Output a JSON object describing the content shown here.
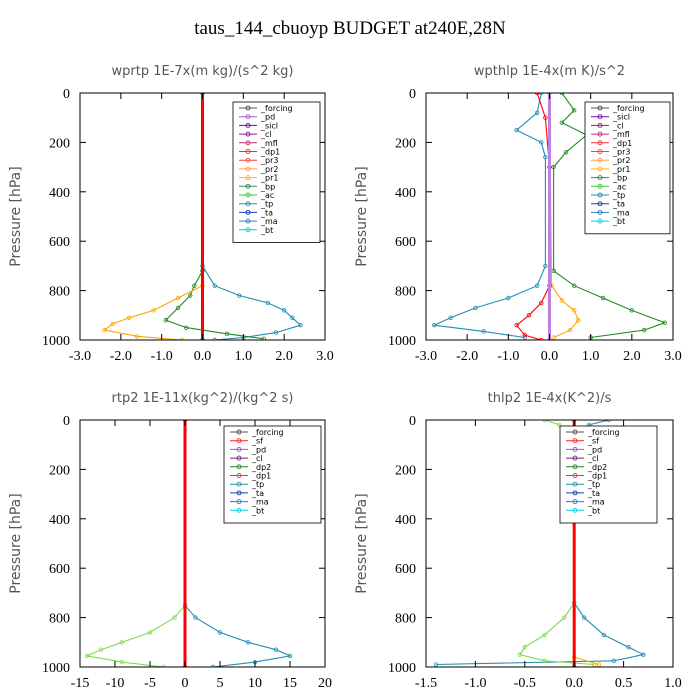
{
  "title": "taus_144_cbuoyp  BUDGET at240E,28N",
  "chart_data": [
    {
      "type": "line",
      "title": "wprtp   1E-7x(m kg)/(s^2 kg)",
      "ylabel": "Pressure [hPa]",
      "xlim": [
        -3.0,
        3.0
      ],
      "ylim": [
        1000,
        0
      ],
      "xticks": [
        "-3.0",
        "-2.0",
        "-1.0",
        "0.0",
        "1.0",
        "2.0",
        "3.0"
      ],
      "yticks": [
        "0",
        "200",
        "400",
        "600",
        "800",
        "1000"
      ],
      "legend": [
        "_forcing",
        "_pd",
        "_sicl",
        "_cl",
        "_mfl",
        "_dp1",
        "_pr3",
        "_pr2",
        "_pr1",
        "_bp",
        "_ac",
        "_tp",
        "_ta",
        "_ma",
        "_bt"
      ],
      "series": [
        {
          "name": "_ma",
          "color": "#1f8fb4",
          "points": [
            [
              0,
              0
            ],
            [
              0,
              700
            ],
            [
              0.3,
              780
            ],
            [
              0.9,
              820
            ],
            [
              1.6,
              850
            ],
            [
              2.0,
              880
            ],
            [
              2.2,
              910
            ],
            [
              2.4,
              940
            ],
            [
              1.8,
              970
            ],
            [
              1.0,
              990
            ],
            [
              0.3,
              1000
            ]
          ]
        },
        {
          "name": "_bp",
          "color": "#228b22",
          "points": [
            [
              0,
              0
            ],
            [
              0,
              720
            ],
            [
              -0.2,
              780
            ],
            [
              -0.3,
              820
            ],
            [
              -0.6,
              870
            ],
            [
              -0.9,
              920
            ],
            [
              -0.4,
              950
            ],
            [
              0.6,
              975
            ],
            [
              1.5,
              995
            ]
          ]
        },
        {
          "name": "_pr1",
          "color": "#ffa500",
          "points": [
            [
              0,
              0
            ],
            [
              0,
              780
            ],
            [
              -0.6,
              830
            ],
            [
              -1.2,
              880
            ],
            [
              -1.8,
              910
            ],
            [
              -2.2,
              935
            ],
            [
              -2.4,
              960
            ],
            [
              -1.6,
              985
            ],
            [
              -0.5,
              1000
            ]
          ]
        },
        {
          "name": "_forcing",
          "color": "#000000",
          "points": [
            [
              0,
              0
            ],
            [
              0,
              1000
            ]
          ]
        },
        {
          "name": "_dp1",
          "color": "#ff0000",
          "points": [
            [
              0,
              0
            ],
            [
              0,
              1000
            ]
          ]
        }
      ]
    },
    {
      "type": "line",
      "title": "wpthlp   1E-4x(m K)/s^2",
      "ylabel": "Pressure [hPa]",
      "xlim": [
        -3.0,
        3.0
      ],
      "ylim": [
        1000,
        0
      ],
      "xticks": [
        "-3.0",
        "-2.0",
        "-1.0",
        "0.0",
        "1.0",
        "2.0",
        "3.0"
      ],
      "yticks": [
        "0",
        "200",
        "400",
        "600",
        "800",
        "1000"
      ],
      "legend": [
        "_forcing",
        "_sicl",
        "_cl",
        "_mfl",
        "_dp1",
        "_pr3",
        "_pr2",
        "_pr1",
        "_bp",
        "_ac",
        "_tp",
        "_ta",
        "_ma",
        "_bt"
      ],
      "series": [
        {
          "name": "_ma",
          "color": "#1f8fb4",
          "points": [
            [
              -0.2,
              0
            ],
            [
              -0.3,
              80
            ],
            [
              -0.8,
              150
            ],
            [
              -0.2,
              200
            ],
            [
              -0.1,
              260
            ],
            [
              -0.1,
              700
            ],
            [
              -0.3,
              780
            ],
            [
              -1.0,
              830
            ],
            [
              -1.8,
              870
            ],
            [
              -2.4,
              910
            ],
            [
              -2.8,
              940
            ],
            [
              -1.6,
              965
            ],
            [
              -0.6,
              990
            ]
          ]
        },
        {
          "name": "_bp",
          "color": "#228b22",
          "points": [
            [
              0.3,
              0
            ],
            [
              0.6,
              70
            ],
            [
              0.3,
              120
            ],
            [
              0.9,
              170
            ],
            [
              0.4,
              240
            ],
            [
              0.1,
              300
            ],
            [
              0.1,
              720
            ],
            [
              0.6,
              780
            ],
            [
              1.3,
              830
            ],
            [
              2.0,
              880
            ],
            [
              2.8,
              930
            ],
            [
              2.3,
              960
            ],
            [
              1.0,
              990
            ]
          ]
        },
        {
          "name": "_pr1",
          "color": "#ffa500",
          "points": [
            [
              0,
              0
            ],
            [
              0.05,
              780
            ],
            [
              0.3,
              840
            ],
            [
              0.6,
              880
            ],
            [
              0.7,
              920
            ],
            [
              0.5,
              960
            ],
            [
              0.1,
              990
            ]
          ]
        },
        {
          "name": "_dp1",
          "color": "#ff0000",
          "points": [
            [
              -0.3,
              0
            ],
            [
              -0.1,
              100
            ],
            [
              0,
              300
            ],
            [
              0,
              780
            ],
            [
              -0.2,
              850
            ],
            [
              -0.5,
              900
            ],
            [
              -0.8,
              940
            ],
            [
              -0.6,
              980
            ],
            [
              -0.2,
              1000
            ]
          ]
        },
        {
          "name": "_forcing",
          "color": "#c080e0",
          "points": [
            [
              0,
              0
            ],
            [
              0,
              1000
            ]
          ]
        }
      ]
    },
    {
      "type": "line",
      "title": "rtp2   1E-11x(kg^2)/(kg^2 s)",
      "ylabel": "Pressure [hPa]",
      "xlim": [
        -15,
        20
      ],
      "ylim": [
        1000,
        0
      ],
      "xticks": [
        "-15",
        "-10",
        "-5",
        "0",
        "5",
        "10",
        "15",
        "20"
      ],
      "yticks": [
        "0",
        "200",
        "400",
        "600",
        "800",
        "1000"
      ],
      "legend": [
        "_forcing",
        "_sf",
        "_pd",
        "_cl",
        "_dp2",
        "_dp1",
        "_tp",
        "_ta",
        "_ma",
        "_bt"
      ],
      "series": [
        {
          "name": "_tp",
          "color": "#1f8fb4",
          "points": [
            [
              0,
              0
            ],
            [
              0,
              750
            ],
            [
              1.5,
              800
            ],
            [
              5,
              860
            ],
            [
              9,
              900
            ],
            [
              13,
              930
            ],
            [
              15,
              955
            ],
            [
              10,
              980
            ],
            [
              4,
              1000
            ]
          ]
        },
        {
          "name": "_dp1",
          "color": "#7fdd4c",
          "points": [
            [
              0,
              0
            ],
            [
              0,
              750
            ],
            [
              -1.5,
              800
            ],
            [
              -5,
              860
            ],
            [
              -9,
              900
            ],
            [
              -12,
              930
            ],
            [
              -14,
              955
            ],
            [
              -9,
              980
            ],
            [
              -3,
              1000
            ]
          ]
        },
        {
          "name": "_forcing",
          "color": "#ff0000",
          "points": [
            [
              0,
              0
            ],
            [
              0,
              1000
            ]
          ]
        }
      ]
    },
    {
      "type": "line",
      "title": "thlp2   1E-4x(K^2)/s",
      "ylabel": "Pressure [hPa]",
      "xlim": [
        -1.5,
        1.0
      ],
      "ylim": [
        1000,
        0
      ],
      "xticks": [
        "-1.5",
        "-1.0",
        "-0.5",
        "0.0",
        "0.5",
        "1.0"
      ],
      "yticks": [
        "0",
        "200",
        "400",
        "600",
        "800",
        "1000"
      ],
      "legend": [
        "_forcing",
        "_sf",
        "_pd",
        "_cl",
        "_dp2",
        "_dp1",
        "_tp",
        "_ta",
        "_ma",
        "_bt"
      ],
      "series": [
        {
          "name": "_tp",
          "color": "#1f8fb4",
          "points": [
            [
              0.35,
              0
            ],
            [
              0.15,
              20
            ],
            [
              0.05,
              60
            ],
            [
              0.02,
              150
            ],
            [
              0,
              300
            ],
            [
              0,
              740
            ],
            [
              0.1,
              800
            ],
            [
              0.3,
              870
            ],
            [
              0.55,
              920
            ],
            [
              0.7,
              950
            ],
            [
              0.4,
              975
            ],
            [
              -1.4,
              990
            ]
          ]
        },
        {
          "name": "_dp1",
          "color": "#7fdd4c",
          "points": [
            [
              -0.3,
              0
            ],
            [
              -0.15,
              20
            ],
            [
              -0.05,
              60
            ],
            [
              -0.02,
              150
            ],
            [
              0,
              300
            ],
            [
              0,
              740
            ],
            [
              -0.1,
              800
            ],
            [
              -0.3,
              870
            ],
            [
              -0.5,
              920
            ],
            [
              -0.55,
              950
            ],
            [
              -0.3,
              975
            ],
            [
              0.2,
              990
            ]
          ]
        },
        {
          "name": "_pd",
          "color": "#ffa500",
          "points": [
            [
              0,
              0
            ],
            [
              0,
              960
            ],
            [
              0.25,
              990
            ]
          ]
        },
        {
          "name": "_forcing",
          "color": "#ff0000",
          "points": [
            [
              0,
              0
            ],
            [
              0,
              1000
            ]
          ]
        }
      ]
    }
  ]
}
